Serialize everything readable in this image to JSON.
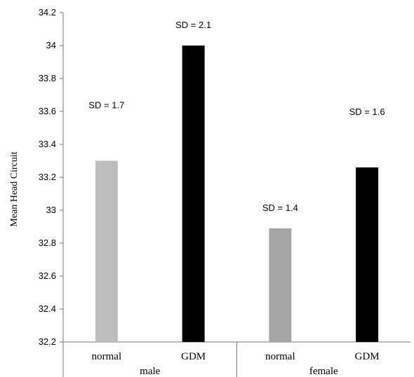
{
  "chart_data": {
    "type": "bar",
    "ylabel": "Mean Head Circuit",
    "ylim": [
      32.2,
      34.2
    ],
    "yticks": [
      32.2,
      32.4,
      32.6,
      32.8,
      33,
      33.2,
      33.4,
      33.6,
      33.8,
      34,
      34.2
    ],
    "ytick_labels": [
      "32.2",
      "32.4",
      "32.6",
      "32.8",
      "33",
      "33.2",
      "33.4",
      "33.6",
      "33.8",
      "34",
      "34.2"
    ],
    "categories": [
      "normal",
      "GDM",
      "normal",
      "GDM"
    ],
    "groups": [
      "male",
      "female"
    ],
    "values": [
      33.3,
      34.0,
      32.89,
      33.26
    ],
    "annotations": [
      "SD = 1.7",
      "SD = 2.1",
      "SD = 1.4",
      "SD = 1.6"
    ],
    "grid": false,
    "colors": [
      "#bdbdbd",
      "#000000",
      "#a6a6a6",
      "#000000"
    ]
  }
}
